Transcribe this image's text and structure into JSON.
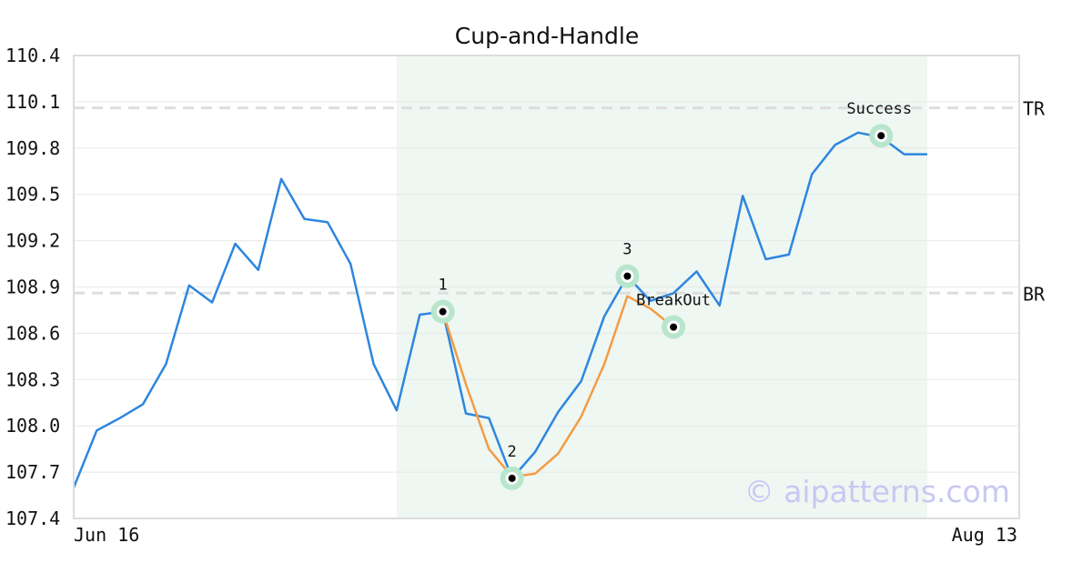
{
  "chart_data": {
    "type": "line",
    "title": "Cup-and-Handle",
    "xlabel": "",
    "ylabel": "",
    "ylim": [
      107.4,
      110.4
    ],
    "y_ticks": [
      "107.4",
      "107.7",
      "108.0",
      "108.3",
      "108.6",
      "108.9",
      "109.2",
      "109.5",
      "109.8",
      "110.1",
      "110.4"
    ],
    "x_tick_labels": [
      "Jun 16",
      "Aug 13"
    ],
    "grid": true,
    "legend": "none",
    "series": [
      {
        "values": [
          107.6,
          107.97,
          108.05,
          108.14,
          108.4,
          108.91,
          108.8,
          109.18,
          109.01,
          109.6,
          109.34,
          109.32,
          109.05,
          108.4,
          108.1,
          108.72,
          108.74,
          108.08,
          108.05,
          107.66,
          107.83,
          108.09,
          108.29,
          108.71,
          108.97,
          108.81,
          108.86,
          109.0,
          108.78,
          109.49,
          109.08,
          109.11,
          109.63,
          109.82,
          109.9,
          109.87,
          109.76,
          109.76
        ],
        "color": "#2e86de"
      },
      {
        "start_index": 16,
        "values": [
          108.74,
          108.27,
          107.85,
          107.67,
          107.69,
          107.82,
          108.06,
          108.4,
          108.84,
          108.76,
          108.64
        ],
        "color": "#f39c45"
      }
    ],
    "pattern_region": {
      "start_index": 14,
      "end_index": 37,
      "color": "#eef7f2"
    },
    "levels": [
      {
        "label": "TR",
        "value": 110.06
      },
      {
        "label": "BR",
        "value": 108.86
      }
    ],
    "points": [
      {
        "label": "1",
        "index": 16,
        "value": 108.74,
        "label_pos": "above"
      },
      {
        "label": "2",
        "index": 19,
        "value": 107.66,
        "label_pos": "above"
      },
      {
        "label": "3",
        "index": 24,
        "value": 108.97,
        "label_pos": "above"
      },
      {
        "label": "BreakOut",
        "index": 26,
        "value": 108.64,
        "label_pos": "above"
      },
      {
        "label": "Success",
        "index": 35,
        "value": 109.88,
        "label_pos": "above-left"
      }
    ],
    "watermark": "© aipatterns.com"
  }
}
